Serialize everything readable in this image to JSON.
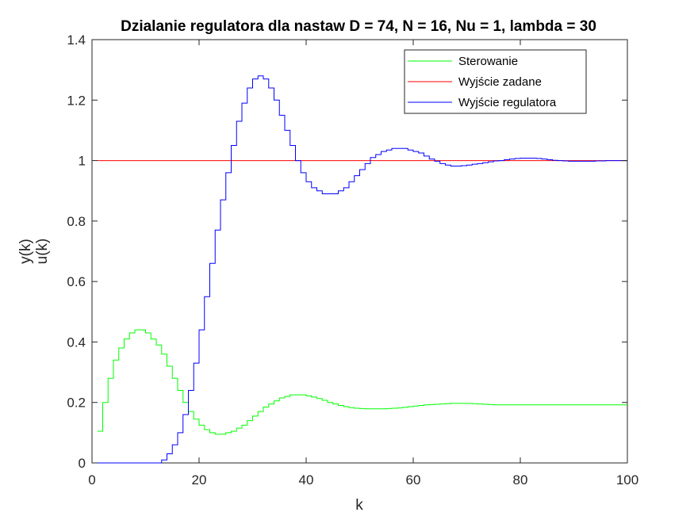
{
  "chart_data": {
    "type": "line",
    "step": true,
    "title": "Dzialanie regulatora dla nastaw D = 74, N = 16, Nu = 1, lambda = 30",
    "xlabel": "k",
    "ylabel_lines": [
      "y(k)",
      "u(k)"
    ],
    "xlim": [
      0,
      100
    ],
    "ylim": [
      0,
      1.4
    ],
    "xticks": [
      0,
      20,
      40,
      60,
      80,
      100
    ],
    "yticks": [
      0,
      0.2,
      0.4,
      0.6,
      0.8,
      1,
      1.2,
      1.4
    ],
    "ytick_labels": [
      "0",
      "0.2",
      "0.4",
      "0.6",
      "0.8",
      "1",
      "1.2",
      "1.4"
    ],
    "grid": false,
    "legend_position": "top-right",
    "x": [
      1,
      2,
      3,
      4,
      5,
      6,
      7,
      8,
      9,
      10,
      11,
      12,
      13,
      14,
      15,
      16,
      17,
      18,
      19,
      20,
      21,
      22,
      23,
      24,
      25,
      26,
      27,
      28,
      29,
      30,
      31,
      32,
      33,
      34,
      35,
      36,
      37,
      38,
      39,
      40,
      41,
      42,
      43,
      44,
      45,
      46,
      47,
      48,
      49,
      50,
      51,
      52,
      53,
      54,
      55,
      56,
      57,
      58,
      59,
      60,
      61,
      62,
      63,
      64,
      65,
      66,
      67,
      68,
      69,
      70,
      71,
      72,
      73,
      74,
      75,
      76,
      77,
      78,
      79,
      80,
      81,
      82,
      83,
      84,
      85,
      86,
      87,
      88,
      89,
      90,
      91,
      92,
      93,
      94,
      95,
      96,
      97,
      98,
      99,
      100
    ],
    "series": [
      {
        "name": "Sterowanie",
        "color": "#00ff00",
        "values": [
          0.105,
          0.2,
          0.28,
          0.34,
          0.38,
          0.41,
          0.43,
          0.44,
          0.44,
          0.43,
          0.41,
          0.39,
          0.36,
          0.32,
          0.28,
          0.24,
          0.2,
          0.17,
          0.145,
          0.125,
          0.11,
          0.1,
          0.095,
          0.095,
          0.1,
          0.105,
          0.115,
          0.125,
          0.14,
          0.155,
          0.17,
          0.185,
          0.195,
          0.205,
          0.215,
          0.22,
          0.225,
          0.225,
          0.225,
          0.222,
          0.218,
          0.213,
          0.207,
          0.2,
          0.195,
          0.19,
          0.186,
          0.183,
          0.181,
          0.18,
          0.179,
          0.179,
          0.179,
          0.179,
          0.18,
          0.181,
          0.182,
          0.184,
          0.186,
          0.188,
          0.19,
          0.192,
          0.193,
          0.194,
          0.195,
          0.196,
          0.197,
          0.197,
          0.197,
          0.197,
          0.196,
          0.195,
          0.194,
          0.193,
          0.192,
          0.192,
          0.192,
          0.192,
          0.192,
          0.192,
          0.192,
          0.192,
          0.192,
          0.192,
          0.192,
          0.192,
          0.192,
          0.192,
          0.192,
          0.192,
          0.192,
          0.192,
          0.192,
          0.192,
          0.192,
          0.192,
          0.192,
          0.192,
          0.192,
          0.192
        ]
      },
      {
        "name": "Wyjście zadane",
        "color": "#ff0000",
        "values": [
          1,
          1,
          1,
          1,
          1,
          1,
          1,
          1,
          1,
          1,
          1,
          1,
          1,
          1,
          1,
          1,
          1,
          1,
          1,
          1,
          1,
          1,
          1,
          1,
          1,
          1,
          1,
          1,
          1,
          1,
          1,
          1,
          1,
          1,
          1,
          1,
          1,
          1,
          1,
          1,
          1,
          1,
          1,
          1,
          1,
          1,
          1,
          1,
          1,
          1,
          1,
          1,
          1,
          1,
          1,
          1,
          1,
          1,
          1,
          1,
          1,
          1,
          1,
          1,
          1,
          1,
          1,
          1,
          1,
          1,
          1,
          1,
          1,
          1,
          1,
          1,
          1,
          1,
          1,
          1,
          1,
          1,
          1,
          1,
          1,
          1,
          1,
          1,
          1,
          1,
          1,
          1,
          1,
          1,
          1,
          1,
          1,
          1,
          1,
          1
        ]
      },
      {
        "name": "Wyjście regulatora",
        "color": "#0000ff",
        "values": [
          0,
          0,
          0,
          0,
          0,
          0,
          0,
          0,
          0,
          0,
          0,
          0,
          0.01,
          0.03,
          0.06,
          0.1,
          0.16,
          0.24,
          0.33,
          0.44,
          0.55,
          0.66,
          0.77,
          0.87,
          0.96,
          1.05,
          1.13,
          1.19,
          1.24,
          1.27,
          1.28,
          1.27,
          1.24,
          1.2,
          1.15,
          1.1,
          1.05,
          1.0,
          0.96,
          0.93,
          0.91,
          0.9,
          0.89,
          0.89,
          0.89,
          0.9,
          0.91,
          0.93,
          0.95,
          0.97,
          0.99,
          1.01,
          1.02,
          1.03,
          1.035,
          1.04,
          1.04,
          1.04,
          1.035,
          1.03,
          1.025,
          1.015,
          1.005,
          0.998,
          0.99,
          0.985,
          0.982,
          0.982,
          0.983,
          0.985,
          0.988,
          0.99,
          0.993,
          0.996,
          0.999,
          1.0,
          1.003,
          1.005,
          1.007,
          1.008,
          1.008,
          1.008,
          1.007,
          1.005,
          1.003,
          1.001,
          1.0,
          0.999,
          0.998,
          0.998,
          0.998,
          0.998,
          0.998,
          0.999,
          0.999,
          1.0,
          1.0,
          1.0,
          1.0,
          1.0
        ]
      }
    ]
  }
}
